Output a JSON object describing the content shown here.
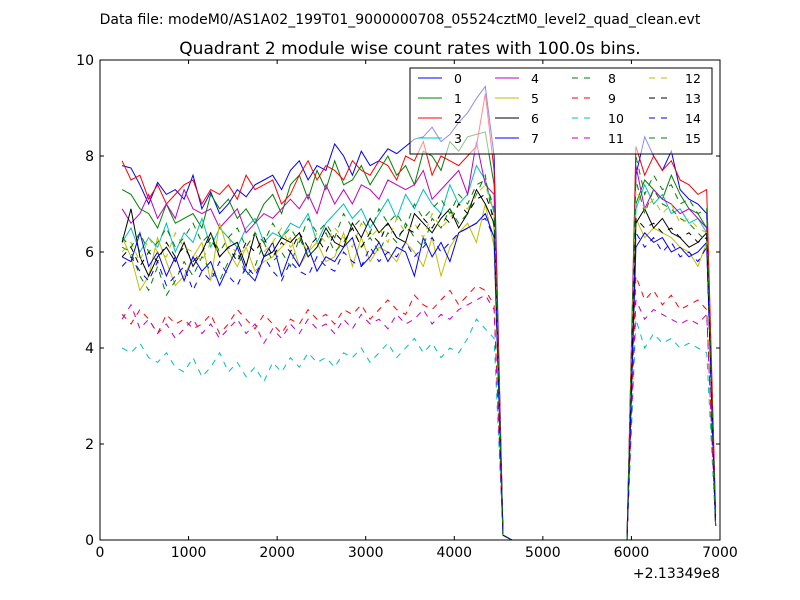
{
  "chart_data": {
    "type": "line",
    "suptitle": "Data file: modeM0/AS1A02_199T01_9000000708_05524cztM0_level2_quad_clean.evt",
    "title": "Quadrant 2 module wise count rates with 100.0s bins.",
    "xlabel": "",
    "ylabel": "",
    "xlim": [
      0,
      7000
    ],
    "ylim": [
      0,
      10
    ],
    "x_offset_label": "+2.13349e8",
    "x_ticks": [
      "0",
      "1000",
      "2000",
      "3000",
      "4000",
      "5000",
      "6000",
      "7000"
    ],
    "y_ticks": [
      "0",
      "2",
      "4",
      "6",
      "8",
      "10"
    ],
    "grid": false,
    "legend_position": "top-right",
    "x": [
      250,
      350,
      450,
      550,
      650,
      750,
      850,
      950,
      1050,
      1150,
      1250,
      1350,
      1450,
      1550,
      1650,
      1750,
      1850,
      1950,
      2050,
      2150,
      2250,
      2350,
      2450,
      2550,
      2650,
      2750,
      2850,
      2950,
      3050,
      3150,
      3250,
      3350,
      3450,
      3550,
      3650,
      3750,
      3850,
      3950,
      4050,
      4150,
      4250,
      4350,
      4450,
      4550,
      4650,
      4750,
      4850,
      4950,
      5050,
      5150,
      5250,
      5350,
      5450,
      5550,
      5650,
      5750,
      5850,
      5950,
      6050,
      6150,
      6250,
      6350,
      6450,
      6550,
      6650,
      6750,
      6850,
      6950
    ],
    "series": [
      {
        "name": "0",
        "color": "#0000ff",
        "dash": "solid",
        "values": [
          7.8,
          7.75,
          7.4,
          7.0,
          7.45,
          7.2,
          7.3,
          7.1,
          7.6,
          6.9,
          7.25,
          6.8,
          7.0,
          7.3,
          7.15,
          7.4,
          7.5,
          7.6,
          7.3,
          7.7,
          7.9,
          7.5,
          7.8,
          7.7,
          8.25,
          8.0,
          7.6,
          8.1,
          7.8,
          7.9,
          8.15,
          8.05,
          8.2,
          8.35,
          8.4,
          8.6,
          8.3,
          8.45,
          8.7,
          8.9,
          9.2,
          9.45,
          8.0,
          0.1,
          0,
          0,
          0,
          0,
          0,
          0,
          0,
          0,
          0,
          0,
          0,
          0,
          0,
          0,
          7.6,
          8.4,
          8.0,
          7.7,
          8.1,
          7.3,
          7.1,
          7.0,
          6.8,
          0.5
        ]
      },
      {
        "name": "1",
        "color": "#008000",
        "dash": "solid",
        "values": [
          7.3,
          7.2,
          6.9,
          6.8,
          6.5,
          7.0,
          6.6,
          6.7,
          6.8,
          6.5,
          7.2,
          6.9,
          7.1,
          6.7,
          6.9,
          6.6,
          7.0,
          7.2,
          6.8,
          7.4,
          7.6,
          7.1,
          7.7,
          7.3,
          7.9,
          7.4,
          7.5,
          7.8,
          7.4,
          7.7,
          8.0,
          7.6,
          7.8,
          7.4,
          8.1,
          8.0,
          7.7,
          8.3,
          8.1,
          8.4,
          8.45,
          8.5,
          7.4,
          0.1,
          0,
          0,
          0,
          0,
          0,
          0,
          0,
          0,
          0,
          0,
          0,
          0,
          0,
          0,
          7.0,
          7.5,
          7.3,
          7.1,
          7.6,
          7.2,
          6.9,
          6.8,
          6.5,
          0.3
        ]
      },
      {
        "name": "2",
        "color": "#ff0000",
        "dash": "solid",
        "values": [
          7.9,
          7.5,
          7.6,
          7.1,
          7.4,
          7.0,
          7.2,
          7.4,
          7.5,
          7.0,
          7.3,
          7.2,
          7.4,
          7.1,
          7.6,
          7.3,
          7.4,
          7.5,
          7.0,
          7.2,
          7.6,
          7.9,
          7.5,
          7.8,
          7.7,
          7.5,
          7.9,
          7.7,
          7.6,
          7.9,
          7.8,
          7.5,
          8.0,
          7.9,
          8.3,
          7.6,
          8.0,
          7.9,
          7.8,
          8.0,
          8.2,
          9.3,
          7.7,
          0.1,
          0,
          0,
          0,
          0,
          0,
          0,
          0,
          0,
          0,
          0,
          0,
          0,
          0,
          0,
          8.2,
          7.6,
          8.0,
          7.7,
          7.9,
          7.5,
          7.4,
          7.2,
          7.3,
          0.6
        ]
      },
      {
        "name": "3",
        "color": "#00bfbf",
        "dash": "solid",
        "values": [
          6.2,
          6.5,
          6.0,
          6.3,
          6.1,
          6.6,
          6.0,
          6.4,
          6.2,
          6.7,
          6.1,
          6.5,
          6.3,
          6.1,
          6.5,
          6.7,
          6.2,
          6.4,
          6.3,
          6.6,
          6.5,
          6.8,
          6.2,
          6.6,
          6.8,
          7.0,
          6.7,
          6.9,
          6.5,
          6.8,
          7.1,
          6.7,
          7.2,
          6.9,
          7.3,
          7.0,
          6.8,
          7.4,
          7.0,
          7.2,
          7.8,
          7.5,
          6.8,
          0.1,
          0,
          0,
          0,
          0,
          0,
          0,
          0,
          0,
          0,
          0,
          0,
          0,
          0,
          0,
          6.9,
          7.4,
          7.0,
          7.2,
          6.8,
          6.9,
          6.6,
          6.7,
          6.4,
          0.3
        ]
      },
      {
        "name": "4",
        "color": "#bf00bf",
        "dash": "solid",
        "values": [
          6.9,
          6.6,
          6.8,
          7.2,
          6.7,
          7.0,
          6.7,
          7.3,
          6.9,
          6.8,
          6.9,
          6.5,
          6.7,
          6.9,
          6.4,
          6.6,
          6.8,
          6.7,
          6.9,
          7.1,
          6.9,
          7.2,
          6.8,
          7.4,
          7.0,
          7.3,
          7.0,
          7.4,
          7.3,
          7.1,
          7.5,
          7.4,
          7.3,
          7.4,
          7.7,
          7.1,
          7.3,
          7.5,
          7.7,
          7.2,
          8.3,
          7.4,
          7.2,
          0.1,
          0,
          0,
          0,
          0,
          0,
          0,
          0,
          0,
          0,
          0,
          0,
          0,
          0,
          0,
          7.8,
          6.9,
          7.3,
          7.1,
          7.0,
          6.8,
          6.9,
          6.7,
          6.5,
          0.4
        ]
      },
      {
        "name": "5",
        "color": "#bfbf00",
        "dash": "solid",
        "values": [
          6.3,
          5.9,
          5.2,
          5.5,
          6.3,
          5.8,
          5.3,
          5.5,
          5.9,
          6.2,
          5.4,
          6.6,
          6.0,
          5.7,
          6.1,
          5.6,
          5.8,
          5.9,
          6.1,
          6.3,
          5.7,
          6.0,
          6.2,
          5.8,
          5.9,
          6.4,
          5.7,
          6.3,
          5.8,
          6.1,
          6.0,
          5.8,
          6.2,
          6.0,
          5.7,
          6.3,
          5.5,
          6.1,
          6.4,
          6.6,
          6.2,
          7.0,
          6.1,
          0.1,
          0,
          0,
          0,
          0,
          0,
          0,
          0,
          0,
          0,
          0,
          0,
          0,
          0,
          0,
          6.7,
          6.3,
          6.5,
          6.4,
          6.3,
          6.1,
          6.0,
          5.7,
          6.2,
          0.3
        ]
      },
      {
        "name": "6",
        "color": "#000000",
        "dash": "solid",
        "values": [
          6.2,
          6.9,
          5.9,
          5.5,
          5.9,
          6.1,
          5.8,
          6.2,
          5.7,
          6.0,
          6.4,
          5.9,
          6.1,
          6.2,
          5.7,
          6.4,
          5.9,
          6.0,
          6.3,
          6.2,
          6.4,
          5.9,
          6.1,
          6.5,
          6.2,
          6.1,
          6.6,
          6.3,
          6.7,
          6.4,
          6.6,
          6.3,
          6.2,
          6.8,
          6.6,
          6.4,
          6.7,
          6.9,
          6.5,
          6.8,
          7.3,
          7.0,
          6.6,
          0.1,
          0,
          0,
          0,
          0,
          0,
          0,
          0,
          0,
          0,
          0,
          0,
          0,
          0,
          0,
          6.6,
          6.9,
          6.5,
          6.7,
          6.4,
          6.3,
          6.1,
          6.2,
          6.4,
          0.3
        ]
      },
      {
        "name": "7",
        "color": "#0000ff",
        "dash": "solid",
        "values": [
          5.9,
          5.8,
          6.4,
          5.7,
          6.0,
          5.5,
          5.9,
          5.4,
          5.9,
          5.6,
          5.8,
          5.3,
          5.7,
          6.1,
          5.6,
          5.4,
          5.9,
          6.2,
          5.5,
          6.0,
          5.7,
          6.1,
          5.6,
          5.9,
          5.8,
          6.1,
          6.3,
          5.7,
          5.9,
          6.2,
          5.8,
          6.1,
          6.0,
          5.5,
          6.3,
          5.9,
          6.2,
          5.8,
          6.4,
          6.5,
          6.6,
          6.8,
          6.3,
          0.1,
          0,
          0,
          0,
          0,
          0,
          0,
          0,
          0,
          0,
          0,
          0,
          0,
          0,
          0,
          6.1,
          6.4,
          6.2,
          6.3,
          6.0,
          6.1,
          5.9,
          6.0,
          6.2,
          0.3
        ]
      },
      {
        "name": "8",
        "color": "#008000",
        "dash": "dashed",
        "values": [
          6.1,
          6.0,
          5.5,
          5.2,
          5.7,
          5.1,
          5.4,
          5.8,
          5.5,
          5.9,
          5.6,
          5.4,
          5.8,
          6.0,
          5.5,
          5.7,
          6.2,
          5.8,
          6.0,
          5.7,
          6.3,
          5.9,
          6.1,
          6.4,
          6.0,
          6.2,
          6.5,
          6.1,
          6.3,
          6.0,
          6.4,
          6.2,
          6.6,
          6.3,
          6.1,
          6.7,
          6.5,
          6.9,
          6.6,
          6.8,
          7.2,
          7.6,
          6.5,
          0.1,
          0,
          0,
          0,
          0,
          0,
          0,
          0,
          0,
          0,
          0,
          0,
          0,
          0,
          0,
          7.5,
          6.8,
          7.3,
          7.0,
          6.9,
          6.7,
          6.6,
          6.4,
          6.2,
          0.3
        ]
      },
      {
        "name": "9",
        "color": "#ff0000",
        "dash": "dashed",
        "values": [
          4.7,
          4.5,
          4.8,
          4.6,
          4.3,
          4.7,
          4.5,
          4.6,
          4.4,
          4.5,
          4.7,
          4.3,
          4.5,
          4.8,
          4.6,
          4.4,
          4.7,
          4.5,
          4.3,
          4.6,
          4.5,
          4.8,
          4.6,
          4.7,
          4.5,
          4.8,
          4.7,
          4.9,
          4.6,
          4.8,
          5.0,
          4.8,
          4.7,
          5.1,
          4.9,
          4.8,
          5.0,
          5.2,
          4.9,
          5.1,
          5.3,
          5.2,
          4.9,
          0.1,
          0,
          0,
          0,
          0,
          0,
          0,
          0,
          0,
          0,
          0,
          0,
          0,
          0,
          0,
          5.5,
          5.0,
          5.2,
          4.9,
          5.1,
          4.8,
          4.9,
          5.0,
          4.8,
          0.3
        ]
      },
      {
        "name": "10",
        "color": "#00bfbf",
        "dash": "dashed",
        "values": [
          4.0,
          3.9,
          4.1,
          3.8,
          3.7,
          3.9,
          3.6,
          3.5,
          3.8,
          3.4,
          3.6,
          3.9,
          3.5,
          3.7,
          3.4,
          3.6,
          3.3,
          3.7,
          3.5,
          3.8,
          3.6,
          3.9,
          3.7,
          3.8,
          3.6,
          3.9,
          3.8,
          4.0,
          3.7,
          3.9,
          4.1,
          3.8,
          4.0,
          4.2,
          3.9,
          4.1,
          3.8,
          4.0,
          3.9,
          4.2,
          4.6,
          4.4,
          4.2,
          0.1,
          0,
          0,
          0,
          0,
          0,
          0,
          0,
          0,
          0,
          0,
          0,
          0,
          0,
          0,
          4.6,
          4.0,
          4.3,
          4.1,
          4.2,
          4.0,
          4.1,
          4.0,
          3.9,
          0.3
        ]
      },
      {
        "name": "11",
        "color": "#bf00bf",
        "dash": "dashed",
        "values": [
          4.6,
          4.9,
          4.4,
          4.6,
          4.3,
          4.5,
          4.2,
          4.4,
          4.6,
          4.3,
          4.5,
          4.2,
          4.4,
          4.6,
          4.3,
          4.5,
          4.1,
          4.4,
          4.2,
          4.5,
          4.3,
          4.6,
          4.4,
          4.5,
          4.3,
          4.6,
          4.4,
          4.7,
          4.5,
          4.6,
          4.4,
          4.7,
          4.5,
          4.6,
          4.8,
          4.5,
          4.7,
          4.6,
          4.8,
          4.9,
          5.0,
          5.1,
          4.8,
          0.1,
          0,
          0,
          0,
          0,
          0,
          0,
          0,
          0,
          0,
          0,
          0,
          0,
          0,
          0,
          5.0,
          4.6,
          4.8,
          4.7,
          4.6,
          4.5,
          4.6,
          4.5,
          4.7,
          0.3
        ]
      },
      {
        "name": "12",
        "color": "#bfbf00",
        "dash": "dashed",
        "values": [
          6.0,
          6.2,
          5.8,
          6.3,
          6.0,
          5.9,
          6.4,
          6.1,
          6.0,
          5.8,
          6.2,
          6.0,
          6.3,
          5.9,
          6.1,
          6.4,
          6.0,
          6.2,
          6.5,
          6.1,
          6.3,
          6.0,
          6.4,
          6.2,
          6.5,
          6.3,
          6.1,
          6.6,
          6.3,
          6.5,
          6.2,
          6.7,
          6.4,
          6.6,
          6.3,
          6.8,
          6.5,
          6.7,
          7.0,
          6.9,
          7.2,
          7.4,
          6.8,
          0.1,
          0,
          0,
          0,
          0,
          0,
          0,
          0,
          0,
          0,
          0,
          0,
          0,
          0,
          0,
          7.3,
          6.9,
          7.1,
          6.8,
          7.0,
          6.6,
          6.7,
          6.5,
          6.4,
          0.3
        ]
      },
      {
        "name": "13",
        "color": "#000000",
        "dash": "dashed",
        "values": [
          5.9,
          6.1,
          5.7,
          6.0,
          5.8,
          6.2,
          5.9,
          6.1,
          5.8,
          6.0,
          6.3,
          5.9,
          6.1,
          5.8,
          6.2,
          6.0,
          6.3,
          5.9,
          6.2,
          6.0,
          6.4,
          6.1,
          6.3,
          6.0,
          6.4,
          6.2,
          6.5,
          6.1,
          6.4,
          6.2,
          6.6,
          6.3,
          6.5,
          6.4,
          6.7,
          6.5,
          6.8,
          6.6,
          7.0,
          6.8,
          7.1,
          7.2,
          6.7,
          0.1,
          0,
          0,
          0,
          0,
          0,
          0,
          0,
          0,
          0,
          0,
          0,
          0,
          0,
          0,
          6.7,
          6.5,
          6.6,
          6.4,
          6.5,
          6.3,
          6.4,
          6.2,
          6.3,
          0.3
        ]
      },
      {
        "name": "14",
        "color": "#0000ff",
        "dash": "dashed",
        "values": [
          5.7,
          5.9,
          5.6,
          5.4,
          5.8,
          5.3,
          5.5,
          5.7,
          5.2,
          5.6,
          5.4,
          5.8,
          5.5,
          5.3,
          5.7,
          5.5,
          5.9,
          5.6,
          5.4,
          5.8,
          5.6,
          5.5,
          5.9,
          5.7,
          5.6,
          6.0,
          5.8,
          5.7,
          6.1,
          5.8,
          6.0,
          5.9,
          6.2,
          5.9,
          6.1,
          6.3,
          6.0,
          6.2,
          6.4,
          6.5,
          6.6,
          6.7,
          6.3,
          0.1,
          0,
          0,
          0,
          0,
          0,
          0,
          0,
          0,
          0,
          0,
          0,
          0,
          0,
          0,
          6.4,
          6.1,
          6.3,
          6.0,
          6.2,
          5.9,
          6.0,
          5.8,
          6.1,
          0.3
        ]
      },
      {
        "name": "15",
        "color": "#008000",
        "dash": "dashed",
        "values": [
          6.3,
          6.1,
          6.4,
          6.0,
          6.2,
          6.5,
          6.1,
          6.3,
          6.6,
          6.2,
          6.4,
          6.0,
          6.3,
          6.5,
          6.1,
          6.4,
          6.2,
          6.6,
          6.3,
          6.5,
          6.2,
          6.7,
          6.4,
          6.6,
          6.3,
          6.8,
          6.5,
          6.7,
          6.4,
          6.9,
          6.6,
          6.8,
          6.5,
          7.0,
          6.7,
          6.9,
          7.1,
          6.8,
          7.2,
          7.0,
          7.4,
          7.5,
          6.9,
          0.1,
          0,
          0,
          0,
          0,
          0,
          0,
          0,
          0,
          0,
          0,
          0,
          0,
          0,
          0,
          8.0,
          7.2,
          7.6,
          7.3,
          7.4,
          7.0,
          7.1,
          6.8,
          6.9,
          0.3
        ]
      }
    ]
  }
}
